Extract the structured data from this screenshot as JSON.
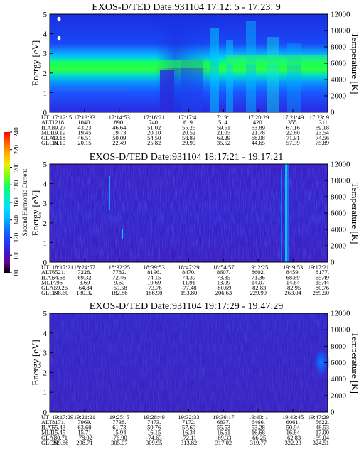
{
  "colors": {
    "scale": [
      "#000000",
      "#6a0090",
      "#3a1ad8",
      "#1a40ff",
      "#1070ff",
      "#00b8ff",
      "#00e0ff",
      "#00f0c0",
      "#10ff60",
      "#80ff10",
      "#e8f000",
      "#ffb000",
      "#ff6000",
      "#ff0000"
    ],
    "background": "#ffffff"
  },
  "colorbar": {
    "label": "Second Harmonic Current",
    "ticks": [
      "80",
      "100",
      "120",
      "140",
      "160",
      "180",
      "200",
      "220",
      "240"
    ]
  },
  "chart_data": [
    {
      "type": "heatmap",
      "title": "EXOS-D/TED   Date:931104   17:12: 5 - 17:23: 9",
      "ylabel": "Energy [eV]",
      "y2label": "Temperature [K]",
      "ylim": [
        0,
        5
      ],
      "y2lim": [
        0,
        12000
      ],
      "yticks": [
        "0",
        "1",
        "2",
        "3",
        "4",
        "5"
      ],
      "y2ticks": [
        "0",
        "2000",
        "4000",
        "6000",
        "8000",
        "10000",
        "12000"
      ],
      "row_labels": [
        "UT",
        "ALT",
        "ILAT",
        "MLT",
        "GLAT",
        "GLON"
      ],
      "columns": [
        [
          "17:12: 5",
          "1218.",
          "39.27",
          "19.19",
          "43.18",
          "18.10"
        ],
        [
          "17:13:33",
          "1040.",
          "43.23",
          "19.45",
          "46.51",
          "20.15"
        ],
        [
          "17:14:53",
          "890.",
          "46.64",
          "19.73",
          "50.09",
          "22.49"
        ],
        [
          "17:16:21",
          "740.",
          "51.02",
          "20.10",
          "54.50",
          "25.82"
        ],
        [
          "17:17:41",
          "619.",
          "55.25",
          "20.52",
          "58.83",
          "29.90"
        ],
        [
          "17:19: 1",
          "514.",
          "59.51",
          "21.05",
          "63.29",
          "35.52"
        ],
        [
          "17:20:29",
          "420.",
          "63.89",
          "21.78",
          "68.08",
          "44.65"
        ],
        [
          "17:21:49",
          "355.",
          "67.16",
          "22.60",
          "71.91",
          "57.39"
        ],
        [
          "17:23: 9",
          "311.",
          "69.18",
          "23.54",
          "74.56",
          "75.89"
        ]
      ]
    },
    {
      "type": "heatmap",
      "title": "EXOS-D/TED   Date:931104   18:17:21 - 19:17:21",
      "ylabel": "Energy [eV]",
      "y2label": "Temperature [K]",
      "ylim": [
        0,
        5
      ],
      "y2lim": [
        0,
        12000
      ],
      "yticks": [
        "0",
        "1",
        "2",
        "3",
        "4",
        "5"
      ],
      "y2ticks": [
        "0",
        "2000",
        "4000",
        "6000",
        "8000",
        "10000",
        "12000"
      ],
      "row_labels": [
        "UT",
        "ALT",
        "ILAT",
        "MLT",
        "GLAT",
        "GLON"
      ],
      "columns": [
        [
          "18:17:21",
          "6521.",
          "64.68",
          "7.96",
          "-59.26",
          "178.60"
        ],
        [
          "18:24:57",
          "7228.",
          "69.32",
          "8.69",
          "-64.84",
          "180.32"
        ],
        [
          "18:32:25",
          "7782.",
          "72.46",
          "9.60",
          "-69.58",
          "182.86"
        ],
        [
          "18:39:53",
          "8196.",
          "74.15",
          "10.69",
          "-73.76",
          "186.90"
        ],
        [
          "18:47:29",
          "8470.",
          "74.39",
          "11.91",
          "-77.48",
          "193.80"
        ],
        [
          "18:54:57",
          "8607.",
          "73.35",
          "13.09",
          "-80.69",
          "206.63"
        ],
        [
          "19: 2:25",
          "8602.",
          "71.36",
          "14.07",
          "-82.83",
          "229.99"
        ],
        [
          "19: 9:53",
          "8459.",
          "68.69",
          "14.84",
          "-82.95",
          "263.04"
        ],
        [
          "19:17:21",
          "8177.",
          "65.49",
          "15.44",
          "-80.76",
          "289.50"
        ]
      ]
    },
    {
      "type": "heatmap",
      "title": "EXOS-D/TED   Date:931104   19:17:29 - 19:47:29",
      "ylabel": "Energy [eV]",
      "y2label": "Temperature [K]",
      "ylim": [
        0,
        5
      ],
      "y2lim": [
        0,
        12000
      ],
      "yticks": [
        "0",
        "1",
        "2",
        "3",
        "4",
        "5"
      ],
      "y2ticks": [
        "0",
        "2000",
        "4000",
        "6000",
        "8000",
        "10000",
        "12000"
      ],
      "row_labels": [
        "UT",
        "ALT",
        "ILAT",
        "MLT",
        "GLAT",
        "GLON"
      ],
      "columns": [
        [
          "19:17:29",
          "8171.",
          "65.43",
          "15.45",
          "-80.71",
          "289.86"
        ],
        [
          "19:21:21",
          "7969.",
          "63.60",
          "15.71",
          "-78.92",
          "298.71"
        ],
        [
          "19:25: 5",
          "7738.",
          "61.73",
          "15.94",
          "-76.90",
          "305.07"
        ],
        [
          "19:28:49",
          "7473.",
          "59.76",
          "16.15",
          "-74.63",
          "309.95"
        ],
        [
          "19:32:33",
          "7172.",
          "57.69",
          "16.34",
          "-72.11",
          "313.82"
        ],
        [
          "19:36:17",
          "6837.",
          "55.53",
          "16.51",
          "-69.33",
          "317.02"
        ],
        [
          "19:40: 1",
          "6466.",
          "53.28",
          "16.68",
          "-66.25",
          "319.77"
        ],
        [
          "19:43:45",
          "6061.",
          "50.94",
          "16.84",
          "-62.83",
          "322.23"
        ],
        [
          "19:47:29",
          "5622.",
          "48.53",
          "17.00",
          "-59.04",
          "324.51"
        ]
      ]
    }
  ]
}
